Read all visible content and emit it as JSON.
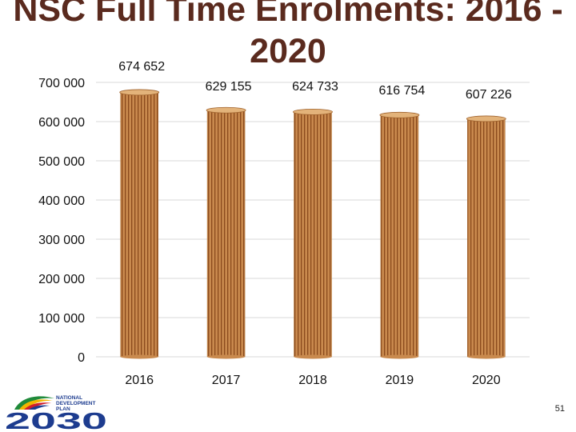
{
  "slide": {
    "page_number": "51"
  },
  "logo": {
    "text_line1": "NATIONAL",
    "text_line2": "DEVELOPMENT",
    "text_line3": "PLAN",
    "year": "2030",
    "icon": "south-africa-flag-swoosh"
  },
  "colors": {
    "title": "#5a2a1e",
    "bar_fill": "#c98a4e",
    "bar_stripe": "#8a4a1c",
    "bar_top": "#e3b37a",
    "grid": "#d9d9d9"
  },
  "chart_data": {
    "type": "bar",
    "title": "NSC Full Time Enrolments: 2016 - 2020",
    "xlabel": "",
    "ylabel": "",
    "categories": [
      "2016",
      "2017",
      "2018",
      "2019",
      "2020"
    ],
    "values": [
      674652,
      629155,
      624733,
      616754,
      607226
    ],
    "value_labels": [
      "674 652",
      "629 155",
      "624 733",
      "616 754",
      "607 226"
    ],
    "ylim": [
      0,
      700000
    ],
    "yticks": [
      0,
      100000,
      200000,
      300000,
      400000,
      500000,
      600000,
      700000
    ],
    "ytick_labels": [
      "0",
      "100 000",
      "200 000",
      "300 000",
      "400 000",
      "500 000",
      "600 000",
      "700 000"
    ],
    "grid": true,
    "legend": "none"
  }
}
